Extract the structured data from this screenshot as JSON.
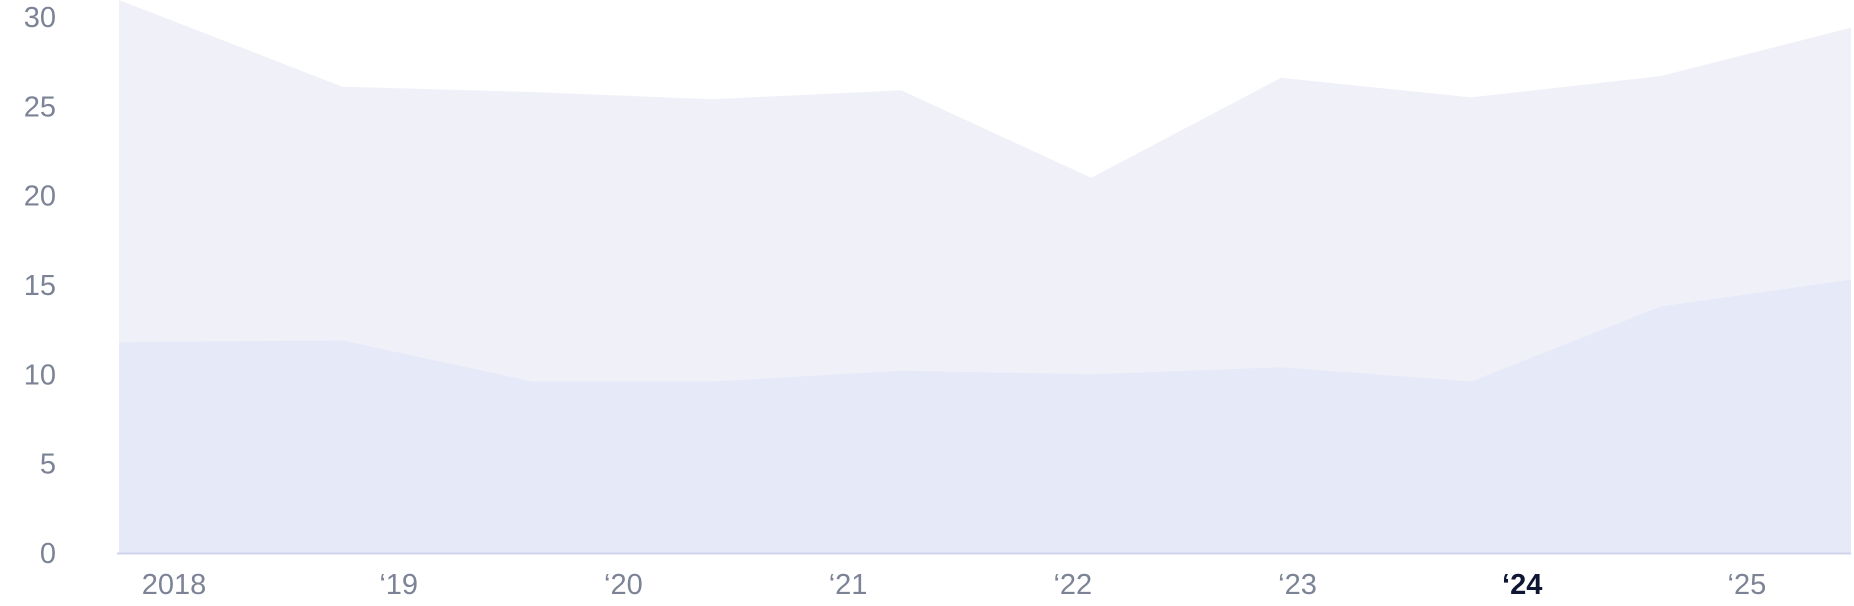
{
  "chart_data": {
    "type": "area",
    "stacked": false,
    "x": [
      2018,
      2019,
      2020,
      2021,
      2022,
      2023,
      2024,
      2025
    ],
    "x_tick_labels": [
      "2018",
      "‘19",
      "‘20",
      "‘21",
      "‘22",
      "‘23",
      "‘24",
      "‘25"
    ],
    "highlighted_x_label": "‘24",
    "ylim": [
      0,
      30
    ],
    "y_ticks": [
      "0",
      "5",
      "10",
      "15",
      "20",
      "25",
      "30"
    ],
    "series": [
      {
        "x": [
          2018.0,
          2019.0,
          2019.85,
          2020.65,
          2021.5,
          2022.35,
          2023.2,
          2024.05,
          2024.9,
          2025.75
        ],
        "values": [
          31.0,
          26.1,
          25.8,
          25.4,
          25.9,
          21.0,
          26.6,
          25.5,
          26.7,
          29.4
        ],
        "color": "#f0f1f8"
      },
      {
        "x": [
          2018.0,
          2019.0,
          2019.85,
          2020.65,
          2021.5,
          2022.35,
          2023.2,
          2024.05,
          2024.9,
          2025.75
        ],
        "values": [
          11.8,
          11.9,
          9.6,
          9.6,
          10.2,
          10.0,
          10.4,
          9.6,
          13.8,
          15.3
        ],
        "color": "#e6e9f7"
      }
    ],
    "baseline_color": "#cfd4e8",
    "grid": false,
    "legend": "none"
  }
}
